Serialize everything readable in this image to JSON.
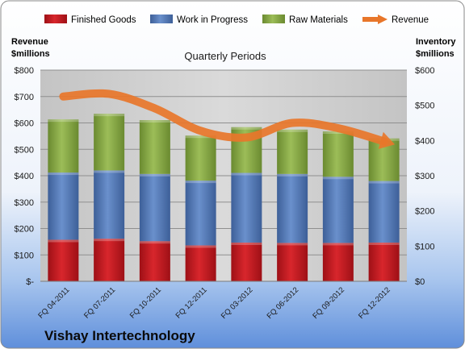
{
  "chart_data": {
    "type": "bar",
    "stacked": true,
    "title": "Quarterly Periods",
    "company": "Vishay Intertechnology",
    "categories": [
      "FQ 04-2011",
      "FQ 07-2011",
      "FQ 10-2011",
      "FQ 12-2011",
      "FQ 03-2012",
      "FQ 06-2012",
      "FQ 09-2012",
      "FQ 12-2012"
    ],
    "series": [
      {
        "name": "Finished Goods",
        "axis": "right",
        "color": "#c0181f",
        "values": [
          118,
          121,
          114,
          102,
          110,
          109,
          109,
          110
        ]
      },
      {
        "name": "Work in Progress",
        "axis": "right",
        "color": "#4f78b8",
        "values": [
          191,
          194,
          191,
          184,
          198,
          196,
          188,
          175
        ]
      },
      {
        "name": "Raw Materials",
        "axis": "right",
        "color": "#88a845",
        "values": [
          151,
          161,
          153,
          128,
          130,
          126,
          129,
          121
        ]
      }
    ],
    "line_series": {
      "name": "Revenue",
      "axis": "left",
      "color": "#e8762a",
      "values": [
        700,
        710,
        655,
        570,
        545,
        600,
        580,
        530
      ]
    },
    "left_axis": {
      "label_line1": "Revenue",
      "label_line2": "$millions",
      "ylim": [
        0,
        800
      ],
      "ticks": [
        "$-",
        "$100",
        "$200",
        "$300",
        "$400",
        "$500",
        "$600",
        "$700",
        "$800"
      ]
    },
    "right_axis": {
      "label_line1": "Inventory",
      "label_line2": "$millions",
      "ylim": [
        0,
        600
      ],
      "ticks": [
        "$0",
        "$100",
        "$200",
        "$300",
        "$400",
        "$500",
        "$600"
      ]
    },
    "legend_position": "top",
    "grid": true
  }
}
